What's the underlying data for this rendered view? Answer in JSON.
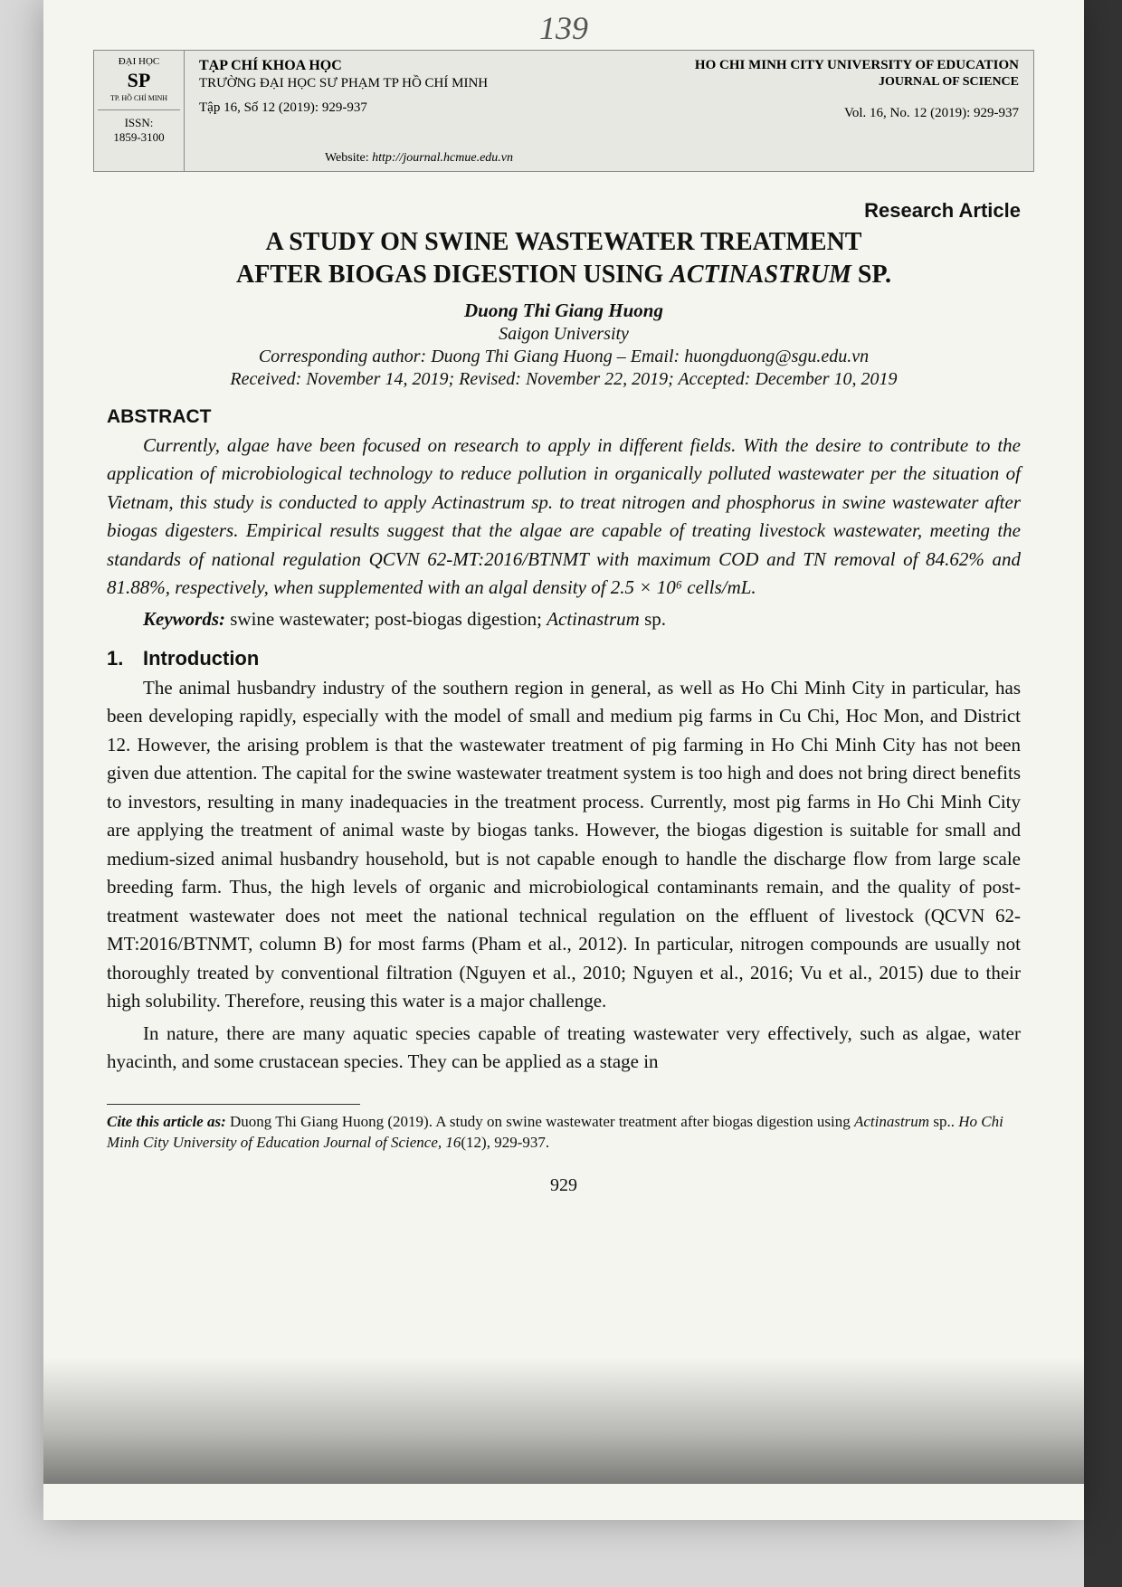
{
  "topPageNumber": "139",
  "header": {
    "logo": {
      "uni": "ĐẠI HỌC",
      "sp": "SP",
      "city": "TP. HỒ CHÍ MINH"
    },
    "issnLabel": "ISSN:",
    "issn": "1859-3100",
    "journalVn": "TẠP CHÍ KHOA HỌC",
    "universityVn": "TRƯỜNG ĐẠI HỌC SƯ PHẠM TP HỒ CHÍ MINH",
    "volumeVn": "Tập 16, Số 12 (2019): 929-937",
    "universityEn": "HO CHI MINH CITY UNIVERSITY OF EDUCATION",
    "journalEn": "JOURNAL OF SCIENCE",
    "volumeEn": "Vol. 16, No. 12 (2019): 929-937",
    "websiteLabel": "Website:",
    "website": "http://journal.hcmue.edu.vn"
  },
  "articleType": "Research Article",
  "titleLine1": "A STUDY ON SWINE WASTEWATER TREATMENT",
  "titleLine2a": "AFTER BIOGAS DIGESTION USING ",
  "titleLine2Species": "ACTINASTRUM",
  "titleLine2b": " SP.",
  "author": "Duong Thi Giang Huong",
  "affiliation": "Saigon University",
  "correspondence": "Corresponding author: Duong Thi Giang Huong – Email: huongduong@sgu.edu.vn",
  "dates": "Received: November 14, 2019; Revised: November 22, 2019; Accepted: December 10, 2019",
  "abstractLabel": "ABSTRACT",
  "abstractText": "Currently, algae have been focused on research to apply in different fields. With the desire to contribute to the application of microbiological technology to reduce pollution in organically polluted wastewater per the situation of Vietnam, this study is conducted to apply Actinastrum sp. to treat nitrogen and phosphorus in swine wastewater after biogas digesters. Empirical results suggest that the algae are capable of treating livestock wastewater, meeting the standards of national regulation QCVN 62-MT:2016/BTNMT with maximum COD and TN removal of 84.62% and 81.88%, respectively, when supplemented with an algal density of 2.5 × 10⁶ cells/mL.",
  "keywordsLabel": "Keywords:",
  "keywordsText": " swine wastewater; post-biogas digestion; ",
  "keywordsSpecies": "Actinastrum",
  "keywordsTail": " sp.",
  "introNum": "1.",
  "introLabel": "Introduction",
  "para1": "The animal husbandry industry of the southern region in general, as well as Ho Chi Minh City in particular, has been developing rapidly, especially with the model of small and medium pig farms in Cu Chi, Hoc Mon, and District 12. However, the arising problem is that the wastewater treatment of pig farming in Ho Chi Minh City has not been given due attention. The capital for the swine wastewater treatment system is too high and does not bring direct benefits to investors, resulting in many inadequacies in the treatment process. Currently, most pig farms in Ho Chi Minh City are applying the treatment of animal waste by biogas tanks. However, the biogas digestion is suitable for small and medium-sized animal husbandry household, but is not capable enough to handle the discharge flow from large scale breeding farm. Thus, the high levels of organic and microbiological contaminants remain, and the quality of post-treatment wastewater does not meet the national technical regulation on the effluent of livestock (QCVN 62-MT:2016/BTNMT, column B) for most farms (Pham et al., 2012). In particular, nitrogen compounds are usually not thoroughly treated by conventional filtration (Nguyen et al., 2010; Nguyen et al., 2016; Vu et al., 2015) due to their high solubility. Therefore, reusing this water is a major challenge.",
  "para2": "In nature, there are many aquatic species capable of treating wastewater very effectively, such as algae, water hyacinth, and some crustacean species. They can be applied as a stage in",
  "footnote": {
    "citeLabel": "Cite this article as:",
    "textA": " Duong Thi Giang Huong (2019). A study on swine wastewater treatment after biogas digestion using ",
    "species": "Actinastrum",
    "textB": " sp.. ",
    "journal": "Ho Chi Minh City University of Education Journal of Science, 16",
    "textC": "(12), 929-937."
  },
  "pageNumberBottom": "929"
}
